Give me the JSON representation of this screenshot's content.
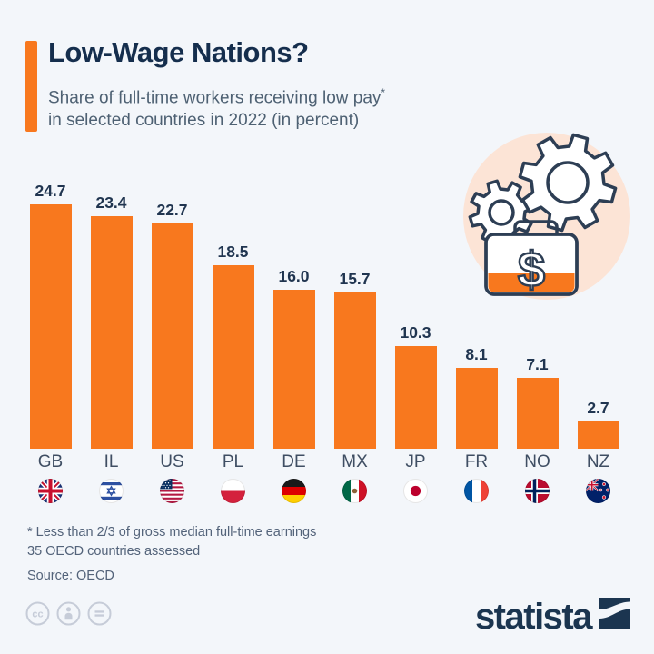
{
  "meta": {
    "background_color": "#f3f6fa",
    "accent_color": "#f8781e",
    "navy_color": "#152e4d"
  },
  "header": {
    "title": "Low-Wage Nations?",
    "subtitle_line1": "Share of full-time workers receiving low pay",
    "subtitle_asterisk": "*",
    "subtitle_line2": "in selected countries in 2022 (in percent)"
  },
  "chart_data": {
    "type": "bar",
    "title": "Low-Wage Nations?",
    "subtitle": "Share of full-time workers receiving low pay* in selected countries in 2022 (in percent)",
    "categories": [
      "GB",
      "IL",
      "US",
      "PL",
      "DE",
      "MX",
      "JP",
      "FR",
      "NO",
      "NZ"
    ],
    "values": [
      24.7,
      23.4,
      22.7,
      18.5,
      16.0,
      15.7,
      10.3,
      8.1,
      7.1,
      2.7
    ],
    "value_labels": [
      "24.7",
      "23.4",
      "22.7",
      "18.5",
      "16.0",
      "15.7",
      "10.3",
      "8.1",
      "7.1",
      "2.7"
    ],
    "flags": [
      "gb",
      "il",
      "us",
      "pl",
      "de",
      "mx",
      "jp",
      "fr",
      "no",
      "nz"
    ],
    "xlabel": "",
    "ylabel": "Share of full-time workers receiving low pay (%)",
    "ylim": [
      0,
      27
    ],
    "bar_color": "#f8781e",
    "grid": false,
    "legend": false
  },
  "illustration": {
    "name": "gears-briefcase-dollar"
  },
  "footnotes": {
    "line1": "* Less than 2/3 of gross median full-time earnings",
    "line2": "35 OECD countries assessed",
    "source": "Source: OECD"
  },
  "footer": {
    "license_icons": [
      "cc-icon",
      "attribution-person-icon",
      "equals-icon"
    ],
    "brand": "statista"
  }
}
